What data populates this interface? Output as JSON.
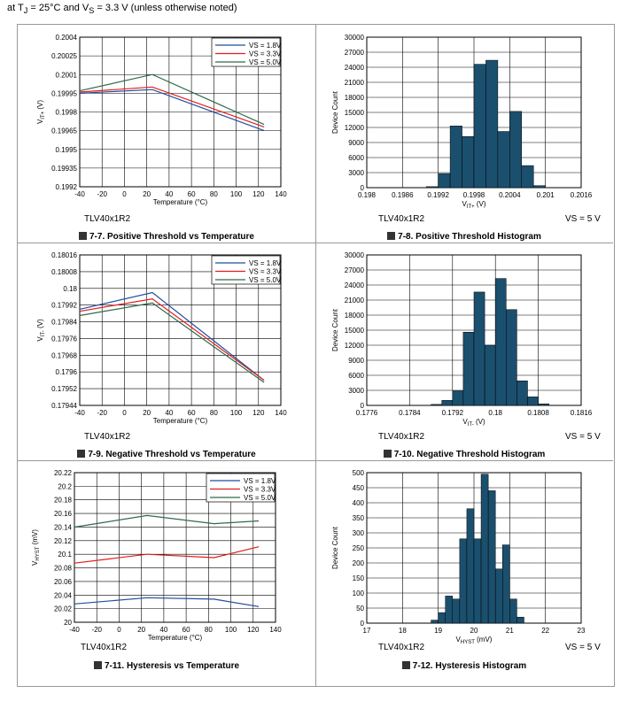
{
  "header": {
    "prefix": "at T",
    "sub_j": "J",
    "mid": " = 25°C and V",
    "sub_s": "S",
    "suffix": " = 3.3 V (unless otherwise noted)"
  },
  "colors": {
    "s18": "#1f4e9e",
    "s33": "#e01e1e",
    "s50": "#2e6b4a",
    "bar": "#1b4f6e"
  },
  "charts": [
    {
      "id": "fig7-7",
      "type": "line",
      "caption": "7-7. Positive Threshold vs Temperature",
      "part": "TLV40x1R2",
      "vs_note": "",
      "xlabel": "Temperature (°C)",
      "ylabel": "V",
      "ylabel_sub": "IT+",
      "ylabel_unit": " (V)",
      "xlim": [
        -40,
        140
      ],
      "xticks": [
        -40,
        -20,
        0,
        20,
        40,
        60,
        80,
        100,
        120,
        140
      ],
      "ylim": [
        0.1992,
        0.2004
      ],
      "yticks": [
        0.1992,
        0.19935,
        0.1995,
        0.19965,
        0.1998,
        0.19995,
        0.2001,
        0.20025,
        0.2004
      ],
      "yticklabels": [
        "0.1992",
        "0.19935",
        "0.1995",
        "0.19965",
        "0.1998",
        "0.19995",
        "0.2001",
        "0.20025",
        "0.2004"
      ],
      "legend": [
        "VS = 1.8V",
        "VS = 3.3V",
        "VS = 5.0V"
      ],
      "series": [
        {
          "name": "VS = 1.8V",
          "color": "#1f4e9e",
          "x": [
            -40,
            25,
            125
          ],
          "y": [
            0.19995,
            0.19998,
            0.19965
          ]
        },
        {
          "name": "VS = 3.3V",
          "color": "#e01e1e",
          "x": [
            -40,
            25,
            125
          ],
          "y": [
            0.19996,
            0.2,
            0.19968
          ]
        },
        {
          "name": "VS = 5.0V",
          "color": "#2e6b4a",
          "x": [
            -40,
            25,
            125
          ],
          "y": [
            0.19997,
            0.2001,
            0.1997
          ]
        }
      ]
    },
    {
      "id": "fig7-8",
      "type": "bar",
      "caption": "7-8. Positive Threshold Histogram",
      "part": "TLV40x1R2",
      "vs_note": "VS = 5 V",
      "xlabel": "V",
      "xlabel_sub": "IT+",
      "xlabel_unit": " (V)",
      "ylabel": "Device Count",
      "xlim": [
        0.198,
        0.2016
      ],
      "xticks": [
        0.198,
        0.1986,
        0.1992,
        0.1998,
        0.2004,
        0.201,
        0.2016
      ],
      "xticklabels": [
        "0.198",
        "0.1986",
        "0.1992",
        "0.1998",
        "0.2004",
        "0.201",
        "0.2016"
      ],
      "ylim": [
        0,
        30000
      ],
      "yticks": [
        0,
        3000,
        6000,
        9000,
        12000,
        15000,
        18000,
        21000,
        24000,
        27000,
        30000
      ],
      "yticklabels": [
        "0",
        "3000",
        "6000",
        "9000",
        "12000",
        "15000",
        "18000",
        "21000",
        "24000",
        "27000",
        "30000"
      ],
      "bin_width": 0.0002,
      "bins": [
        0.199,
        0.1992,
        0.1994,
        0.1996,
        0.1998,
        0.2,
        0.2002,
        0.2004,
        0.2006,
        0.2008
      ],
      "values": [
        200,
        2800,
        12300,
        10200,
        24600,
        25400,
        11200,
        15200,
        4400,
        400
      ]
    },
    {
      "id": "fig7-9",
      "type": "line",
      "caption": "7-9. Negative Threshold vs Temperature",
      "part": "TLV40x1R2",
      "vs_note": "",
      "xlabel": "Temperature (°C)",
      "ylabel": "V",
      "ylabel_sub": "IT-",
      "ylabel_unit": " (V)",
      "xlim": [
        -40,
        140
      ],
      "xticks": [
        -40,
        -20,
        0,
        20,
        40,
        60,
        80,
        100,
        120,
        140
      ],
      "ylim": [
        0.17944,
        0.18016
      ],
      "yticks": [
        0.17944,
        0.17952,
        0.1796,
        0.17968,
        0.17976,
        0.17984,
        0.17992,
        0.18,
        0.18008,
        0.18016
      ],
      "yticklabels": [
        "0.17944",
        "0.17952",
        "0.1796",
        "0.17968",
        "0.17976",
        "0.17984",
        "0.17992",
        "0.18",
        "0.18008",
        "0.18016"
      ],
      "legend": [
        "VS = 1.8V",
        "VS = 3.3V",
        "VS = 5.0V"
      ],
      "series": [
        {
          "name": "VS = 1.8V",
          "color": "#1f4e9e",
          "x": [
            -40,
            25,
            125
          ],
          "y": [
            0.1799,
            0.17998,
            0.17956
          ]
        },
        {
          "name": "VS = 3.3V",
          "color": "#e01e1e",
          "x": [
            -40,
            25,
            125
          ],
          "y": [
            0.17989,
            0.17995,
            0.17956
          ]
        },
        {
          "name": "VS = 5.0V",
          "color": "#2e6b4a",
          "x": [
            -40,
            25,
            125
          ],
          "y": [
            0.17987,
            0.17993,
            0.17955
          ]
        }
      ]
    },
    {
      "id": "fig7-10",
      "type": "bar",
      "caption": "7-10. Negative Threshold Histogram",
      "part": "TLV40x1R2",
      "vs_note": "VS = 5 V",
      "xlabel": "V",
      "xlabel_sub": "IT-",
      "xlabel_unit": " (V)",
      "ylabel": "Device Count",
      "xlim": [
        0.1776,
        0.1816
      ],
      "xticks": [
        0.1776,
        0.1784,
        0.1792,
        0.18,
        0.1808,
        0.1816
      ],
      "xticklabels": [
        "0.1776",
        "0.1784",
        "0.1792",
        "0.18",
        "0.1808",
        "0.1816"
      ],
      "ylim": [
        0,
        30000
      ],
      "yticks": [
        0,
        3000,
        6000,
        9000,
        12000,
        15000,
        18000,
        21000,
        24000,
        27000,
        30000
      ],
      "yticklabels": [
        "0",
        "3000",
        "6000",
        "9000",
        "12000",
        "15000",
        "18000",
        "21000",
        "24000",
        "27000",
        "30000"
      ],
      "bin_width": 0.0002,
      "bins": [
        0.1788,
        0.179,
        0.1792,
        0.1794,
        0.1796,
        0.1798,
        0.18,
        0.1802,
        0.1804,
        0.1806,
        0.1808
      ],
      "values": [
        200,
        1000,
        2900,
        14600,
        22600,
        12000,
        25300,
        19100,
        4900,
        1700,
        300
      ]
    },
    {
      "id": "fig7-11",
      "type": "line",
      "caption": "7-11. Hysteresis vs Temperature",
      "part": "TLV40x1R2",
      "vs_note": "",
      "xlabel": "Temperature (°C)",
      "ylabel": "V",
      "ylabel_sub": "HYST",
      "ylabel_unit": " (mV)",
      "xlim": [
        -40,
        140
      ],
      "xticks": [
        -40,
        -20,
        0,
        20,
        40,
        60,
        80,
        100,
        120,
        140
      ],
      "ylim": [
        20,
        20.22
      ],
      "yticks": [
        20,
        20.02,
        20.04,
        20.06,
        20.08,
        20.1,
        20.12,
        20.14,
        20.16,
        20.18,
        20.2,
        20.22
      ],
      "yticklabels": [
        "20",
        "20.02",
        "20.04",
        "20.06",
        "20.08",
        "20.1",
        "20.12",
        "20.14",
        "20.16",
        "20.18",
        "20.2",
        "20.22"
      ],
      "legend": [
        "VS = 1.8V",
        "VS = 3.3V",
        "VS = 5.0V"
      ],
      "series": [
        {
          "name": "VS = 1.8V",
          "color": "#1f4e9e",
          "x": [
            -40,
            25,
            85,
            125
          ],
          "y": [
            20.027,
            20.036,
            20.034,
            20.023
          ]
        },
        {
          "name": "VS = 3.3V",
          "color": "#e01e1e",
          "x": [
            -40,
            25,
            85,
            125
          ],
          "y": [
            20.087,
            20.1,
            20.095,
            20.111
          ]
        },
        {
          "name": "VS = 5.0V",
          "color": "#2e6b4a",
          "x": [
            -40,
            25,
            85,
            125
          ],
          "y": [
            20.14,
            20.157,
            20.145,
            20.149
          ]
        }
      ]
    },
    {
      "id": "fig7-12",
      "type": "bar",
      "caption": "7-12. Hysteresis Histogram",
      "part": "TLV40x1R2",
      "vs_note": "VS = 5 V",
      "xlabel": "V",
      "xlabel_sub": "HYST",
      "xlabel_unit": " (mV)",
      "ylabel": "Device Count",
      "xlim": [
        17,
        23
      ],
      "xticks": [
        17,
        18,
        19,
        20,
        21,
        22,
        23
      ],
      "xticklabels": [
        "17",
        "18",
        "19",
        "20",
        "21",
        "22",
        "23"
      ],
      "ylim": [
        0,
        500
      ],
      "yticks": [
        0,
        50,
        100,
        150,
        200,
        250,
        300,
        350,
        400,
        450,
        500
      ],
      "yticklabels": [
        "0",
        "50",
        "100",
        "150",
        "200",
        "250",
        "300",
        "350",
        "400",
        "450",
        "500"
      ],
      "bin_width": 0.2,
      "bins": [
        18.8,
        19.0,
        19.2,
        19.4,
        19.6,
        19.8,
        20.0,
        20.2,
        20.4,
        20.6,
        20.8,
        21.0,
        21.2
      ],
      "values": [
        10,
        35,
        90,
        80,
        280,
        380,
        280,
        495,
        440,
        180,
        260,
        80,
        20
      ]
    }
  ]
}
